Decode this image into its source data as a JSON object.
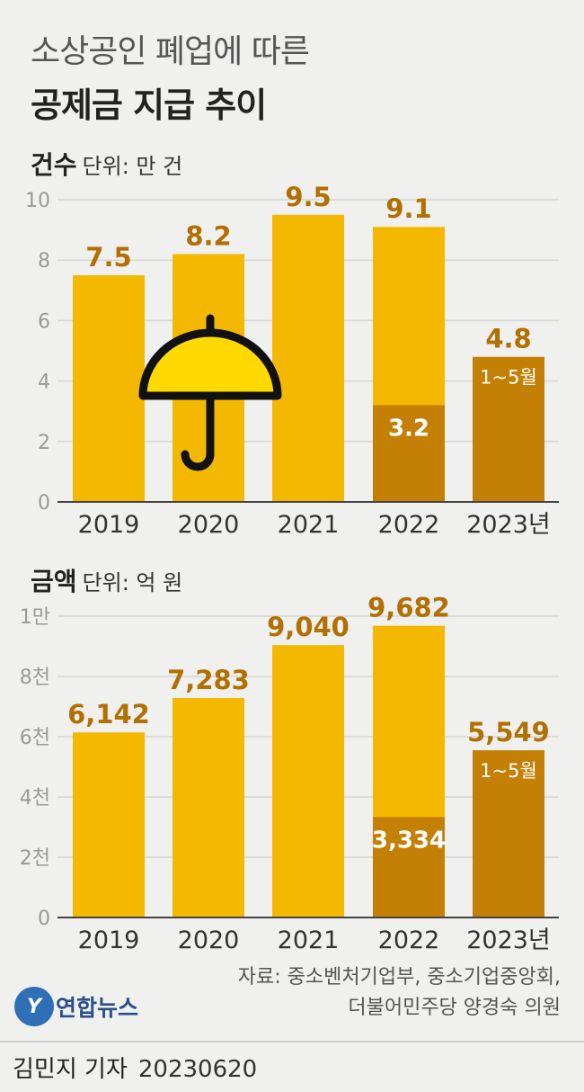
{
  "header": {
    "title_line1": "소상공인 폐업에 따른",
    "title_line2": "공제금 지급 추이"
  },
  "colors": {
    "bar": "#f5b800",
    "bar_partial": "#c47f05",
    "value_label": "#b26f02",
    "grid": "#d6d6d4",
    "umbrella": "#ffd900"
  },
  "illustration": {
    "icon": "umbrella-icon"
  },
  "chart_data": [
    {
      "type": "bar",
      "name_bold": "건수",
      "unit": "단위: 만 건",
      "categories": [
        "2019",
        "2020",
        "2021",
        "2022",
        "2023년"
      ],
      "ylim": [
        0,
        10
      ],
      "yticks": [
        0,
        2,
        4,
        6,
        8,
        10
      ],
      "ytick_labels": [
        "0",
        "2",
        "4",
        "6",
        "8",
        "10"
      ],
      "values": [
        7.5,
        8.2,
        9.5,
        9.1,
        4.8
      ],
      "value_labels": [
        "7.5",
        "8.2",
        "9.5",
        "9.1",
        "4.8"
      ],
      "partial": {
        "index": 3,
        "value": 3.2,
        "label": "3.2"
      },
      "period_note": {
        "index": 4,
        "label": "1~5월"
      },
      "grid": true
    },
    {
      "type": "bar",
      "name_bold": "금액",
      "unit": "단위: 억 원",
      "categories": [
        "2019",
        "2020",
        "2021",
        "2022",
        "2023년"
      ],
      "ylim": [
        0,
        10000
      ],
      "yticks": [
        0,
        2000,
        4000,
        6000,
        8000,
        10000
      ],
      "ytick_labels": [
        "0",
        "2천",
        "4천",
        "6천",
        "8천",
        "1만"
      ],
      "values": [
        6142,
        7283,
        9040,
        9682,
        5549
      ],
      "value_labels": [
        "6,142",
        "7,283",
        "9,040",
        "9,682",
        "5,549"
      ],
      "partial": {
        "index": 3,
        "value": 3334,
        "label": "3,334"
      },
      "period_note": {
        "index": 4,
        "label": "1~5월"
      },
      "grid": true
    }
  ],
  "source": {
    "line1": "자료: 중소벤처기업부, 중소기업중앙회,",
    "line2": "더불어민주당 양경숙 의원"
  },
  "logo": {
    "mark": "Y",
    "text": "연합뉴스"
  },
  "footer": {
    "author": "김민지 기자",
    "date": "20230620"
  }
}
